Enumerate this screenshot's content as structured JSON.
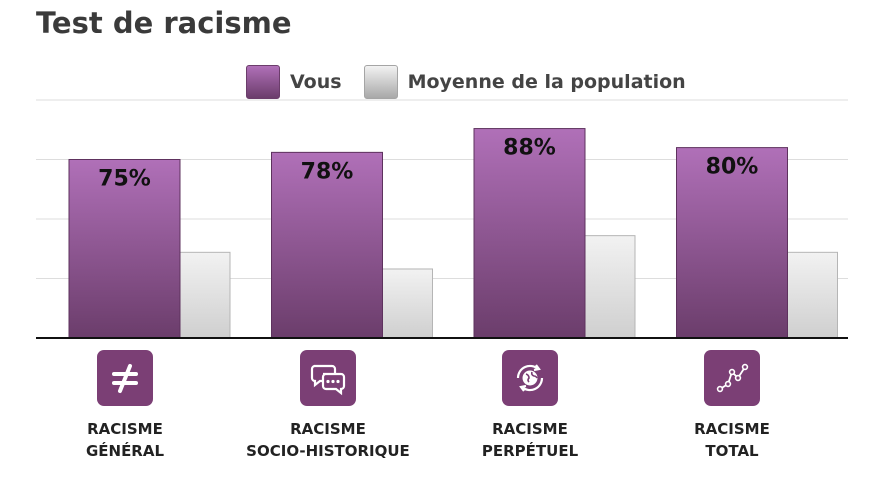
{
  "page": {
    "title": "Test de racisme"
  },
  "legend": {
    "you": "Vous",
    "average": "Moyenne de la population"
  },
  "colors": {
    "you_top": "#b070b8",
    "you_bottom": "#6b3d6b",
    "avg_top": "#f2f2f2",
    "avg_bottom": "#a8a8a8",
    "icon_bg": "#7b3f75"
  },
  "categories": [
    {
      "line1": "RACISME",
      "line2": "GÉNÉRAL",
      "icon": "not-equal-icon"
    },
    {
      "line1": "RACISME",
      "line2": "SOCIO-HISTORIQUE",
      "icon": "chat-bubbles-icon"
    },
    {
      "line1": "RACISME",
      "line2": "PERPÉTUEL",
      "icon": "globe-cycle-icon"
    },
    {
      "line1": "RACISME",
      "line2": "TOTAL",
      "icon": "line-graph-icon"
    }
  ],
  "chart_data": {
    "type": "bar",
    "title": "Test de racisme",
    "categories": [
      "RACISME GÉNÉRAL",
      "RACISME SOCIO-HISTORIQUE",
      "RACISME PERPÉTUEL",
      "RACISME TOTAL"
    ],
    "series": [
      {
        "name": "Vous",
        "values": [
          75,
          78,
          88,
          80
        ],
        "labels": [
          "75%",
          "78%",
          "88%",
          "80%"
        ]
      },
      {
        "name": "Moyenne de la population",
        "values": [
          36,
          29,
          43,
          36
        ]
      }
    ],
    "ylim": [
      0,
      100
    ],
    "grid": true,
    "legend_position": "top"
  }
}
